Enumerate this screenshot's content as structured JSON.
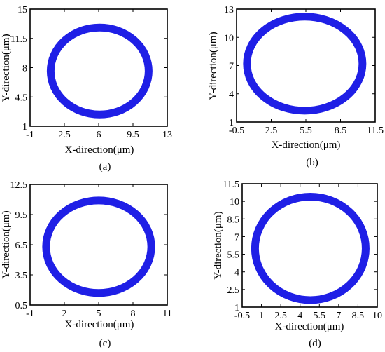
{
  "figure": {
    "ring_color": "#1f1fe6",
    "axis_color": "#000000"
  },
  "chart_data": [
    {
      "type": "line",
      "label": "(a)",
      "xlabel": "X-direction(μm)",
      "ylabel": "Y-direction(μm)",
      "xlim": [
        -1,
        13
      ],
      "ylim": [
        1,
        15
      ],
      "xticks": [
        "-1",
        "2.5",
        "6",
        "9.5",
        "13"
      ],
      "yticks": [
        "1",
        "4.5",
        "8",
        "11.5",
        "15"
      ],
      "xtick_values": [
        -1,
        2.5,
        6,
        9.5,
        13
      ],
      "ytick_values": [
        1,
        4.5,
        8,
        11.5,
        15
      ],
      "ring": {
        "center": [
          6.1,
          7.6
        ],
        "radius": [
          5.0,
          5.2
        ]
      },
      "grid": false
    },
    {
      "type": "line",
      "label": "(b)",
      "xlabel": "X-direction(μm)",
      "ylabel": "Y-direction(μm)",
      "xlim": [
        -0.5,
        11.5
      ],
      "ylim": [
        1,
        13
      ],
      "xticks": [
        "-0.5",
        "2.5",
        "5.5",
        "8.5",
        "11.5"
      ],
      "yticks": [
        "1",
        "4",
        "7",
        "10",
        "13"
      ],
      "xtick_values": [
        -0.5,
        2.5,
        5.5,
        8.5,
        11.5
      ],
      "ytick_values": [
        1,
        4,
        7,
        10,
        13
      ],
      "ring": {
        "center": [
          5.4,
          7.2
        ],
        "radius": [
          5.0,
          5.0
        ]
      },
      "grid": false
    },
    {
      "type": "line",
      "label": "(c)",
      "xlabel": "X-direction(μm)",
      "ylabel": "Y-direction(μm)",
      "xlim": [
        -1,
        11
      ],
      "ylim": [
        0.5,
        12.5
      ],
      "xticks": [
        "-1",
        "2",
        "5",
        "8",
        "11"
      ],
      "yticks": [
        "0.5",
        "3.5",
        "6.5",
        "9.5",
        "12.5"
      ],
      "xtick_values": [
        -1,
        2,
        5,
        8,
        11
      ],
      "ytick_values": [
        0.5,
        3.5,
        6.5,
        9.5,
        12.5
      ],
      "ring": {
        "center": [
          5.0,
          6.3
        ],
        "radius": [
          4.6,
          4.6
        ]
      },
      "grid": false
    },
    {
      "type": "line",
      "label": "(d)",
      "xlabel": "X-direction(μm)",
      "ylabel": "Y-direction(μm)",
      "xlim": [
        -0.5,
        10
      ],
      "ylim": [
        1,
        11.5
      ],
      "xticks": [
        "-0.5",
        "1",
        "2.5",
        "4",
        "5.5",
        "7",
        "8.5",
        "10"
      ],
      "yticks": [
        "1",
        "2.5",
        "4",
        "5.5",
        "7",
        "8.5",
        "10",
        "11.5"
      ],
      "xtick_values": [
        -0.5,
        1,
        2.5,
        4,
        5.5,
        7,
        8.5,
        10
      ],
      "ytick_values": [
        1,
        2.5,
        4,
        5.5,
        7,
        8.5,
        10,
        11.5
      ],
      "ring": {
        "center": [
          4.8,
          6.0
        ],
        "radius": [
          4.3,
          4.4
        ]
      },
      "grid": false
    }
  ]
}
